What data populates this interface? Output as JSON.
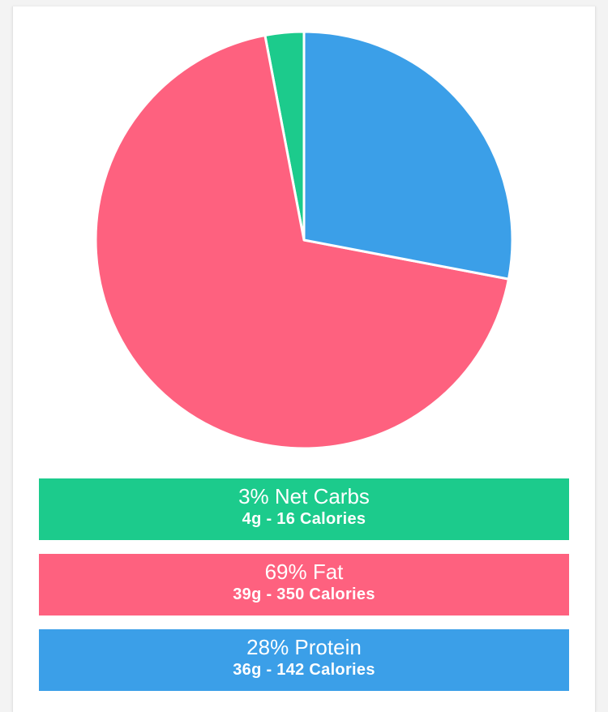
{
  "chart_data": {
    "type": "pie",
    "slices": [
      {
        "label": "Net Carbs",
        "percent": 3,
        "grams": "4g",
        "calories": 16,
        "color": "#1ccb8c"
      },
      {
        "label": "Fat",
        "percent": 69,
        "grams": "39g",
        "calories": 350,
        "color": "#fe617f"
      },
      {
        "label": "Protein",
        "percent": 28,
        "grams": "36g",
        "calories": 142,
        "color": "#3b9fe8"
      }
    ]
  },
  "legend": [
    {
      "title": "3% Net Carbs",
      "detail": "4g - 16 Calories",
      "color": "#1ccb8c"
    },
    {
      "title": "69% Fat",
      "detail": "39g - 350 Calories",
      "color": "#fe617f"
    },
    {
      "title": "28% Protein",
      "detail": "36g - 142 Calories",
      "color": "#3b9fe8"
    }
  ]
}
